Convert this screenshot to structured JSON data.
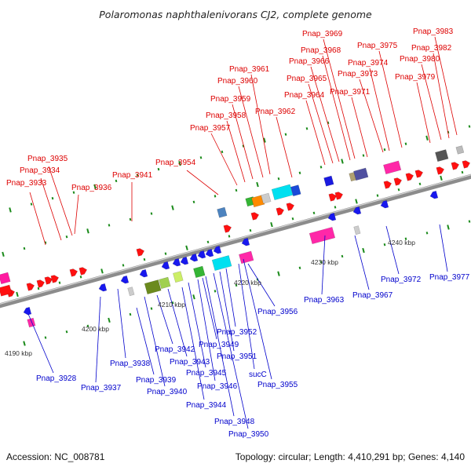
{
  "title": "Polaromonas naphthalenivorans CJ2, complete genome",
  "footer": {
    "accession": "Accession: NC_008781",
    "summary": "Topology: circular; Length: 4,410,291 bp; Genes: 4,140"
  },
  "colors": {
    "forward_label": "#dd0000",
    "reverse_label": "#0000cc",
    "backbone": "#8c8c8c",
    "tick": "#1a8a1a"
  },
  "scale_labels": [
    "4190 kbp",
    "4200 kbp",
    "4210 kbp",
    "4220 kbp",
    "4230 kbp",
    "4240 kbp"
  ],
  "forward_labels": [
    "Pnap_3933",
    "Pnap_3934",
    "Pnap_3935",
    "Pnap_3936",
    "Pnap_3941",
    "Pnap_3954",
    "Pnap_3957",
    "Pnap_3958",
    "Pnap_3959",
    "Pnap_3960",
    "Pnap_3961",
    "Pnap_3962",
    "Pnap_3964",
    "Pnap_3965",
    "Pnap_3966",
    "Pnap_3968",
    "Pnap_3969",
    "Pnap_3971",
    "Pnap_3973",
    "Pnap_3974",
    "Pnap_3975",
    "Pnap_3979",
    "Pnap_3980",
    "Pnap_3982",
    "Pnap_3983"
  ],
  "reverse_labels": [
    "Pnap_3928",
    "Pnap_3937",
    "Pnap_3938",
    "Pnap_3939",
    "Pnap_3940",
    "Pnap_3942",
    "Pnap_3943",
    "Pnap_3944",
    "Pnap_3945",
    "Pnap_3946",
    "Pnap_3948",
    "Pnap_3949",
    "Pnap_3950",
    "Pnap_3951",
    "Pnap_3952",
    "sucC",
    "Pnap_3955",
    "Pnap_3956",
    "Pnap_3963",
    "Pnap_3967",
    "Pnap_3972",
    "Pnap_3977"
  ]
}
